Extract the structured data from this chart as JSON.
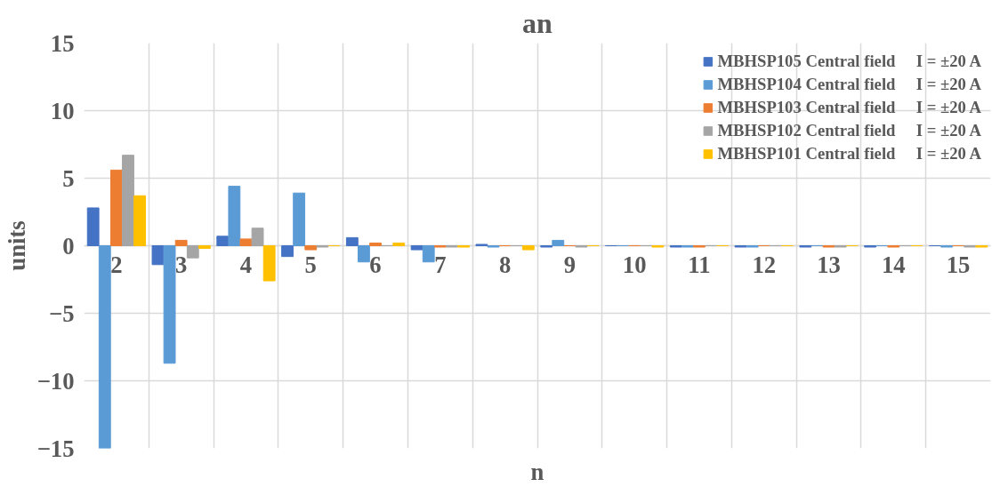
{
  "chart_data": {
    "type": "bar",
    "title": "an",
    "xlabel": "n",
    "ylabel": "units",
    "categories": [
      "2",
      "3",
      "4",
      "5",
      "6",
      "7",
      "8",
      "9",
      "10",
      "11",
      "12",
      "13",
      "14",
      "15"
    ],
    "series": [
      {
        "name": "MBHSP105 Central field     I = ±20 A",
        "color": "#4472c4",
        "values": [
          2.8,
          -1.4,
          0.7,
          -0.8,
          0.6,
          -0.3,
          0.1,
          -0.1,
          0,
          -0.1,
          -0.1,
          -0.1,
          -0.1,
          0
        ]
      },
      {
        "name": "MBHSP104 Central field     I = ±20 A",
        "color": "#5b9bd5",
        "values": [
          -15,
          -8.7,
          4.4,
          3.9,
          -1.2,
          -1.2,
          -0.1,
          0.4,
          0,
          -0.1,
          -0.1,
          0,
          0,
          -0.1
        ]
      },
      {
        "name": "MBHSP103 Central field     I = ±20 A",
        "color": "#ed7d31",
        "values": [
          5.6,
          0.4,
          0.5,
          -0.3,
          0.2,
          -0.1,
          0,
          0,
          0,
          -0.1,
          0,
          -0.1,
          -0.1,
          0
        ]
      },
      {
        "name": "MBHSP102 Central field     I = ±20 A",
        "color": "#a5a5a5",
        "values": [
          6.7,
          -0.9,
          1.3,
          -0.1,
          0,
          -0.1,
          0,
          -0.1,
          0,
          0,
          0,
          -0.1,
          0,
          -0.1
        ]
      },
      {
        "name": "MBHSP101 Central field     I = ±20 A",
        "color": "#ffc000",
        "values": [
          3.7,
          -0.2,
          -2.6,
          0,
          0.2,
          -0.1,
          -0.3,
          0,
          -0.1,
          0,
          0,
          0,
          0,
          -0.1
        ]
      }
    ],
    "ylim": [
      -15,
      15
    ],
    "yticks": [
      -15,
      -10,
      -5,
      0,
      5,
      10,
      15
    ],
    "grid": true,
    "legend": "top right"
  }
}
